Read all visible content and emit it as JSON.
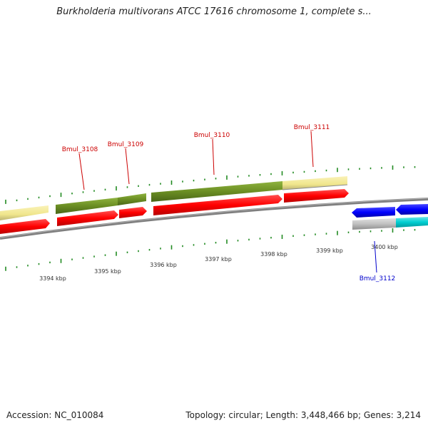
{
  "title": "Burkholderia multivorans ATCC 17616 chromosome 1, complete s...",
  "footer": {
    "accession": "Accession: NC_010084",
    "summary": "Topology: circular; Length: 3,448,466 bp; Genes: 3,214"
  },
  "colors": {
    "cds_forward": "#6b8e23",
    "cds_reverse": "#ff0000",
    "gene": "#f0e68c",
    "gene_reverse": "#c0c0c0",
    "cds_blue": "#0000ff",
    "cds_cyan": "#00ced1",
    "backbone": "#808080",
    "tick": "#228b22",
    "label_red": "#cc0000",
    "label_blue": "#0000cc"
  },
  "scale": {
    "labels": [
      "3394 kbp",
      "3395 kbp",
      "3396 kbp",
      "3397 kbp",
      "3398 kbp",
      "3399 kbp",
      "3400 kbp"
    ]
  },
  "genes": [
    {
      "name": "Bmul_3108",
      "color": "label_red"
    },
    {
      "name": "Bmul_3109",
      "color": "label_red"
    },
    {
      "name": "Bmul_3110",
      "color": "label_red"
    },
    {
      "name": "Bmul_3111",
      "color": "label_red"
    },
    {
      "name": "Bmul_3112",
      "color": "label_blue"
    }
  ]
}
